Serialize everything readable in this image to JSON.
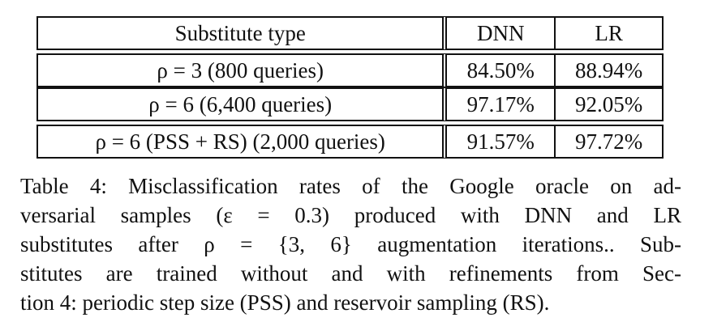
{
  "table": {
    "header": {
      "type": "Substitute type",
      "dnn": "DNN",
      "lr": "LR"
    },
    "rows": [
      {
        "type": "ρ = 3 (800 queries)",
        "dnn": "84.50%",
        "lr": "88.94%"
      },
      {
        "type": "ρ = 6 (6,400 queries)",
        "dnn": "97.17%",
        "lr": "92.05%"
      },
      {
        "type": "ρ = 6 (PSS + RS) (2,000 queries)",
        "dnn": "91.57%",
        "lr": "97.72%"
      }
    ]
  },
  "caption": {
    "lines": [
      "Table 4: Misclassification rates of the Google oracle on ad-",
      "versarial samples (ε = 0.3) produced with DNN and LR",
      "substitutes after ρ = {3, 6} augmentation iterations.. Sub-",
      "stitutes are trained without and with refinements from Sec-",
      "tion 4: periodic step size (PSS) and reservoir sampling (RS)."
    ]
  }
}
